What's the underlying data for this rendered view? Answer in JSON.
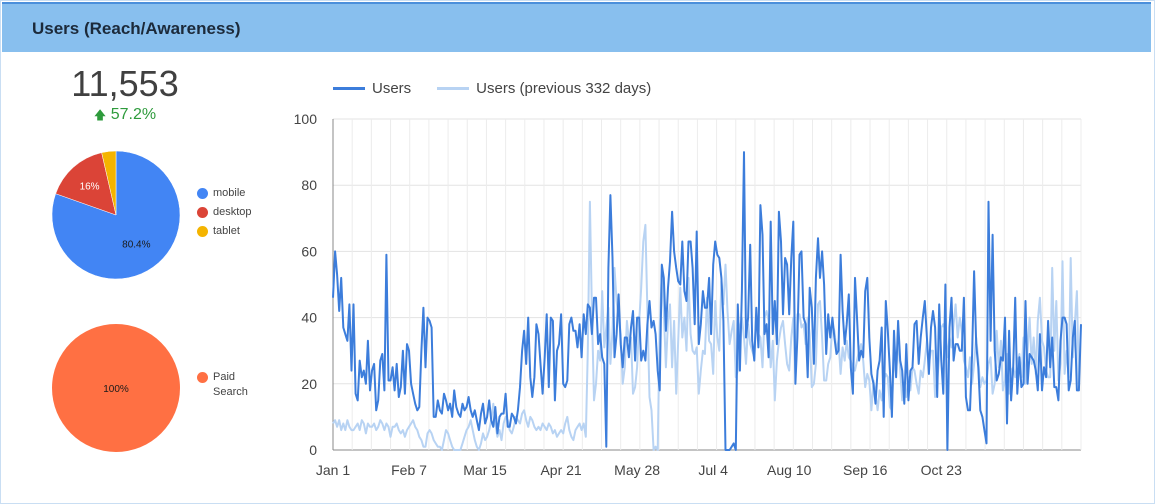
{
  "header": {
    "title": "Users (Reach/Awareness)"
  },
  "scorecard": {
    "value": "11,553",
    "delta_icon": "arrow-up-icon",
    "delta": "57.2%",
    "delta_color": "#2e9b3c"
  },
  "device_pie": {
    "type": "pie",
    "slices": [
      {
        "name": "mobile",
        "value": 80.4,
        "color": "#4285f4",
        "label": "80.4%"
      },
      {
        "name": "desktop",
        "value": 16.0,
        "color": "#db4437",
        "label": "16%"
      },
      {
        "name": "tablet",
        "value": 3.6,
        "color": "#f4b400",
        "label": ""
      }
    ]
  },
  "channel_pie": {
    "type": "pie",
    "slices": [
      {
        "name": "Paid Search",
        "name_lines": [
          "Paid",
          "Search"
        ],
        "value": 100,
        "color": "#ff7043",
        "label": "100%"
      }
    ]
  },
  "chart_data": {
    "type": "line",
    "x_ticks": [
      "Jan 1",
      "Feb 7",
      "Mar 15",
      "Apr 21",
      "May 28",
      "Jul 4",
      "Aug 10",
      "Sep 16",
      "Oct 23"
    ],
    "y_ticks": [
      "0",
      "20",
      "40",
      "60",
      "80",
      "100"
    ],
    "ylim": [
      0,
      100
    ],
    "grid": true,
    "legend_position": "top",
    "series": [
      {
        "name": "Users",
        "color": "#3c7ddb",
        "values": [
          46,
          60,
          53,
          42,
          52,
          37,
          35,
          33,
          44,
          24,
          44,
          17,
          15,
          27,
          22,
          24,
          20,
          33,
          18,
          24,
          26,
          12,
          15,
          27,
          29,
          18,
          59,
          21,
          21,
          25,
          18,
          26,
          16,
          19,
          30,
          17,
          32,
          30,
          20,
          17,
          14,
          12,
          13,
          30,
          43,
          25,
          40,
          39,
          37,
          10,
          10,
          15,
          12,
          11,
          17,
          15,
          12,
          14,
          10,
          18,
          13,
          11,
          10,
          14,
          12,
          13,
          16,
          12,
          10,
          12,
          9,
          6,
          11,
          14,
          8,
          10,
          15,
          9,
          7,
          13,
          5,
          10,
          11,
          11,
          17,
          7,
          7,
          11,
          10,
          8,
          12,
          19,
          30,
          36,
          26,
          40,
          22,
          16,
          22,
          38,
          35,
          26,
          17,
          28,
          41,
          19,
          40,
          39,
          15,
          30,
          32,
          41,
          20,
          19,
          21,
          38,
          40,
          36,
          36,
          31,
          38,
          28,
          41,
          35,
          44,
          43,
          35,
          46,
          46,
          32,
          35,
          28,
          26,
          1,
          55,
          77,
          58,
          28,
          35,
          47,
          32,
          25,
          34,
          34,
          28,
          37,
          42,
          27,
          40,
          40,
          27,
          30,
          27,
          38,
          45,
          37,
          39,
          35,
          24,
          18,
          56,
          52,
          36,
          49,
          57,
          72,
          60,
          55,
          51,
          50,
          63,
          48,
          45,
          63,
          63,
          55,
          38,
          66,
          32,
          38,
          48,
          43,
          43,
          52,
          35,
          56,
          63,
          59,
          58,
          52,
          39,
          0,
          0,
          0,
          1,
          2,
          0,
          44,
          24,
          48,
          90,
          34,
          40,
          62,
          33,
          27,
          43,
          31,
          74,
          65,
          35,
          38,
          28,
          69,
          35,
          45,
          32,
          72,
          63,
          41,
          58,
          56,
          41,
          58,
          69,
          20,
          34,
          59,
          60,
          40,
          38,
          22,
          49,
          43,
          26,
          52,
          64,
          52,
          60,
          50,
          29,
          41,
          34,
          40,
          34,
          29,
          30,
          59,
          42,
          32,
          38,
          47,
          25,
          17,
          52,
          40,
          27,
          30,
          28,
          48,
          52,
          34,
          23,
          20,
          14,
          24,
          27,
          37,
          10,
          45,
          36,
          24,
          10,
          36,
          22,
          39,
          27,
          24,
          14,
          32,
          15,
          24,
          25,
          38,
          39,
          26,
          34,
          40,
          45,
          34,
          23,
          37,
          42,
          37,
          16,
          44,
          27,
          17,
          50,
          0,
          37,
          46,
          27,
          32,
          32,
          30,
          30,
          46,
          16,
          12,
          12,
          29,
          54,
          32,
          25,
          12,
          10,
          6,
          2,
          75,
          33,
          65,
          30,
          21,
          23,
          28,
          27,
          40,
          8,
          36,
          15,
          25,
          46,
          17,
          28,
          19,
          20,
          45,
          20,
          29,
          28,
          27,
          24,
          18,
          35,
          18,
          25,
          22,
          39,
          25,
          34,
          19,
          19,
          15,
          33,
          40,
          40,
          38,
          18,
          21,
          34,
          39,
          18,
          18,
          38
        ]
      },
      {
        "name": "Users (previous 332 days)",
        "color": "#b8d3f3",
        "values": [
          8,
          9,
          7,
          9,
          6,
          8,
          6,
          9,
          7,
          6,
          6,
          7,
          8,
          6,
          9,
          8,
          5,
          8,
          7,
          7,
          8,
          6,
          7,
          9,
          8,
          6,
          8,
          7,
          4,
          7,
          7,
          8,
          6,
          5,
          6,
          4,
          6,
          7,
          8,
          9,
          7,
          6,
          4,
          3,
          1,
          1,
          5,
          6,
          5,
          3,
          2,
          1,
          1,
          0,
          3,
          6,
          5,
          3,
          1,
          0,
          0,
          0,
          0,
          2,
          4,
          6,
          7,
          9,
          6,
          3,
          1,
          0,
          2,
          5,
          3,
          4,
          6,
          9,
          14,
          8,
          4,
          6,
          3,
          8,
          10,
          9,
          6,
          5,
          7,
          10,
          9,
          8,
          11,
          12,
          9,
          7,
          10,
          9,
          7,
          6,
          7,
          6,
          8,
          7,
          6,
          8,
          7,
          5,
          6,
          4,
          5,
          6,
          5,
          8,
          10,
          6,
          4,
          3,
          6,
          7,
          8,
          6,
          8,
          4,
          30,
          75,
          42,
          15,
          20,
          30,
          27,
          48,
          31,
          37,
          43,
          26,
          36,
          55,
          45,
          40,
          35,
          20,
          25,
          39,
          33,
          34,
          17,
          19,
          25,
          39,
          49,
          63,
          68,
          42,
          16,
          12,
          0,
          1,
          0,
          37,
          53,
          42,
          25,
          39,
          44,
          25,
          39,
          17,
          33,
          49,
          34,
          40,
          30,
          52,
          35,
          30,
          29,
          31,
          17,
          24,
          30,
          29,
          46,
          33,
          32,
          23,
          45,
          34,
          30,
          51,
          44,
          56,
          42,
          32,
          36,
          39,
          22,
          24,
          37,
          40,
          34,
          26,
          38,
          32,
          30,
          28,
          41,
          35,
          34,
          25,
          40,
          42,
          39,
          25,
          33,
          15,
          27,
          33,
          37,
          39,
          32,
          26,
          24,
          34,
          40,
          23,
          41,
          41,
          37,
          38,
          32,
          40,
          35,
          19,
          20,
          26,
          44,
          45,
          34,
          21,
          21,
          26,
          28,
          38,
          36,
          30,
          33,
          23,
          31,
          27,
          33,
          28,
          27,
          24,
          24,
          27,
          30,
          32,
          27,
          19,
          23,
          21,
          12,
          21,
          17,
          12,
          18,
          15,
          21,
          23,
          22,
          13,
          12,
          28,
          23,
          34,
          24,
          15,
          20,
          16,
          22,
          18,
          25,
          24,
          20,
          17,
          24,
          22,
          27,
          33,
          26,
          30,
          30,
          16,
          21,
          28,
          37,
          38,
          36,
          28,
          34,
          31,
          38,
          44,
          34,
          40,
          36,
          27,
          25,
          22,
          28,
          20,
          26,
          34,
          27,
          19,
          22,
          20,
          21,
          26,
          28,
          17,
          20,
          36,
          25,
          33,
          18,
          21,
          29,
          17,
          24,
          25,
          22,
          26,
          29,
          22,
          34,
          20,
          30,
          40,
          26,
          34,
          23,
          39,
          46,
          33,
          31,
          24,
          22,
          22,
          55,
          30,
          45,
          21,
          26,
          57,
          23,
          30,
          22,
          58,
          28,
          38,
          48,
          20
        ]
      }
    ]
  }
}
